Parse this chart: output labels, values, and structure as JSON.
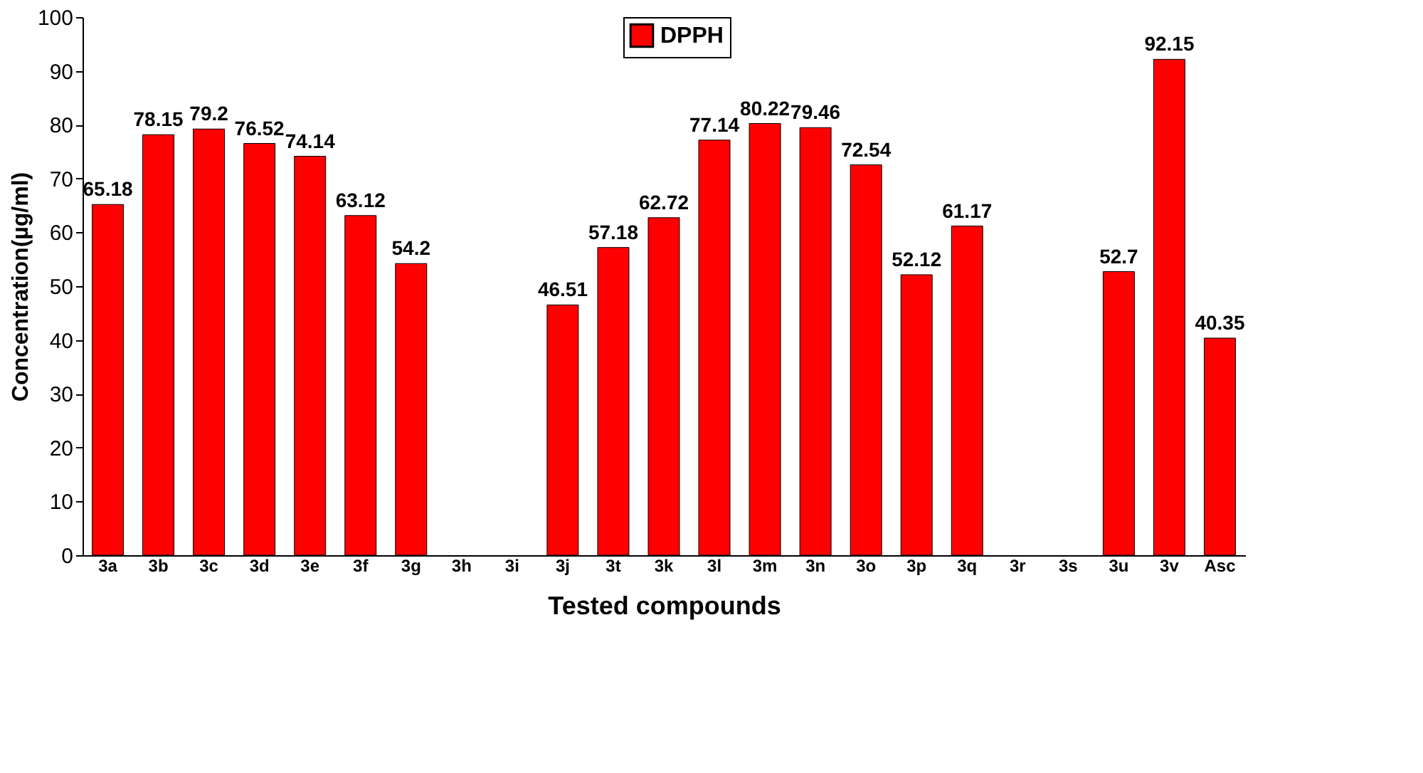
{
  "chart_data": {
    "type": "bar",
    "xlabel": "Tested compounds",
    "ylabel": "Concentration(µg/ml)",
    "categories": [
      "3a",
      "3b",
      "3c",
      "3d",
      "3e",
      "3f",
      "3g",
      "3h",
      "3i",
      "3j",
      "3t",
      "3k",
      "3l",
      "3m",
      "3n",
      "3o",
      "3p",
      "3q",
      "3r",
      "3s",
      "3u",
      "3v",
      "Asc"
    ],
    "series": [
      {
        "name": "DPPH",
        "color": "#ff0000",
        "values": [
          65.18,
          78.15,
          79.2,
          76.52,
          74.14,
          63.12,
          54.2,
          null,
          null,
          46.51,
          57.18,
          62.72,
          77.14,
          80.22,
          79.46,
          72.54,
          52.12,
          61.17,
          null,
          null,
          52.7,
          92.15,
          40.35
        ]
      }
    ],
    "ylim": [
      0,
      100
    ],
    "yticks": [
      0,
      10,
      20,
      30,
      40,
      50,
      60,
      70,
      80,
      90,
      100
    ],
    "grid": false,
    "legend": "top",
    "data_labels": true
  }
}
